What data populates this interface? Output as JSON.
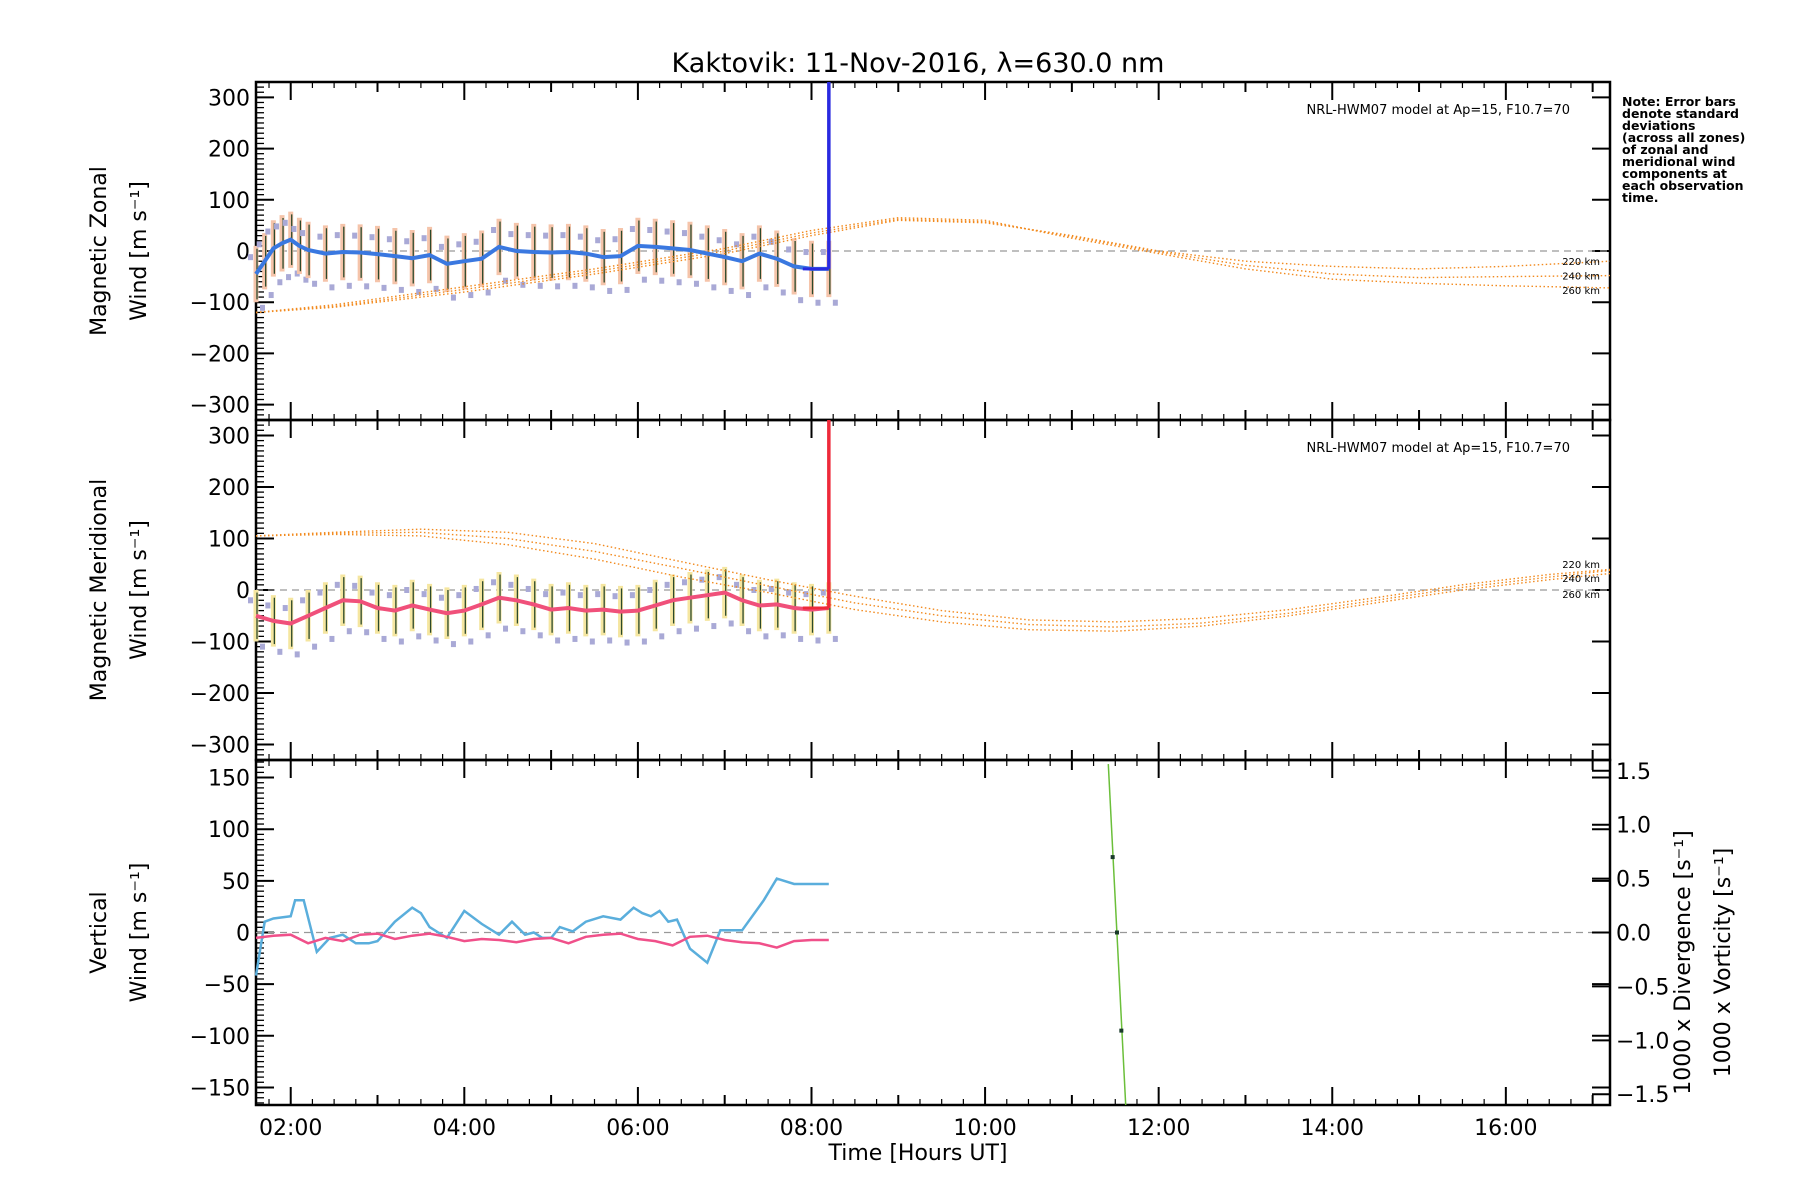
{
  "title": "Kaktovik: 11-Nov-2016, λ=630.0 nm",
  "note": [
    "Note: Error bars",
    "denote standard",
    "deviations",
    "(across all zones)",
    "of zonal and",
    "meridional wind",
    "components at",
    "each observation",
    "time."
  ],
  "model_label": "NRL-HWM07 model at Ap=15, F10.7=70",
  "model_altitudes": [
    "220 km",
    "240 km",
    "260 km"
  ],
  "colors": {
    "zonal": "#3a78e0",
    "zonal_fill": "#f5c4aa",
    "meridional": "#f0507a",
    "meridional_fill": "#f5e6a0",
    "model": "#f28a1e",
    "scatter": "#a9a9d6",
    "vertical": "#6bbf3a",
    "divergence": "#5aaedc",
    "vorticity": "#f0508a",
    "cut_zonal": "#2a2ae0",
    "cut_meridional": "#ee2a3a"
  },
  "chart_data": [
    {
      "type": "line",
      "panel": "zonal",
      "ylabel": [
        "Magnetic Zonal",
        "Wind [m s⁻¹]"
      ],
      "ylim": [
        -330,
        330
      ],
      "yticks": [
        "300",
        "200",
        "100",
        "0",
        "−100",
        "−200",
        "−300"
      ],
      "xlim": [
        1.6,
        17.2
      ],
      "series": [
        {
          "role": "observed",
          "x": [
            1.6,
            1.7,
            1.8,
            1.9,
            2.0,
            2.1,
            2.2,
            2.4,
            2.6,
            2.8,
            3.0,
            3.2,
            3.4,
            3.6,
            3.8,
            4.0,
            4.2,
            4.4,
            4.6,
            4.8,
            5.0,
            5.2,
            5.4,
            5.6,
            5.8,
            6.0,
            6.2,
            6.4,
            6.6,
            6.8,
            7.0,
            7.2,
            7.4,
            7.6,
            7.8,
            8.0,
            8.2
          ],
          "y": [
            -45,
            -20,
            5,
            15,
            22,
            10,
            2,
            -5,
            -2,
            -3,
            -6,
            -10,
            -14,
            -8,
            -25,
            -20,
            -15,
            8,
            0,
            -2,
            -3,
            -2,
            -5,
            -12,
            -10,
            10,
            8,
            5,
            2,
            -5,
            -12,
            -20,
            -5,
            -15,
            -30,
            -35,
            -35
          ],
          "sd": [
            55,
            55,
            55,
            55,
            55,
            55,
            55,
            55,
            55,
            55,
            55,
            55,
            55,
            55,
            55,
            55,
            55,
            55,
            55,
            55,
            55,
            55,
            55,
            55,
            55,
            55,
            55,
            55,
            55,
            55,
            55,
            55,
            55,
            55,
            55,
            55,
            55
          ]
        },
        {
          "role": "model 220 km",
          "x": [
            1.6,
            2.5,
            4.0,
            5.5,
            7.0,
            8.0,
            9.0,
            10.0,
            11.0,
            12.0,
            13.0,
            14.0,
            15.0,
            16.0,
            17.2
          ],
          "y": [
            -120,
            -110,
            -80,
            -45,
            -5,
            30,
            60,
            55,
            30,
            0,
            -20,
            -30,
            -35,
            -30,
            -20
          ]
        },
        {
          "role": "model 240 km",
          "x": [
            1.6,
            2.5,
            4.0,
            5.5,
            7.0,
            8.0,
            9.0,
            10.0,
            11.0,
            12.0,
            13.0,
            14.0,
            15.0,
            16.0,
            17.2
          ],
          "y": [
            -120,
            -108,
            -75,
            -40,
            0,
            35,
            62,
            57,
            28,
            -2,
            -28,
            -45,
            -52,
            -50,
            -48
          ]
        },
        {
          "role": "model 260 km",
          "x": [
            1.6,
            2.5,
            4.0,
            5.5,
            7.0,
            8.0,
            9.0,
            10.0,
            11.0,
            12.0,
            13.0,
            14.0,
            15.0,
            16.0,
            17.2
          ],
          "y": [
            -120,
            -105,
            -70,
            -35,
            5,
            40,
            65,
            60,
            25,
            -5,
            -35,
            -55,
            -63,
            -68,
            -72
          ]
        }
      ],
      "cutoff": {
        "x": 8.2,
        "y_from": -35,
        "y_to": 330
      }
    },
    {
      "type": "line",
      "panel": "meridional",
      "ylabel": [
        "Magnetic Meridional",
        "Wind [m s⁻¹]"
      ],
      "ylim": [
        -330,
        330
      ],
      "yticks": [
        "300",
        "200",
        "100",
        "0",
        "−100",
        "−200",
        "−300"
      ],
      "xlim": [
        1.6,
        17.2
      ],
      "series": [
        {
          "role": "observed",
          "x": [
            1.6,
            1.8,
            2.0,
            2.2,
            2.4,
            2.6,
            2.8,
            3.0,
            3.2,
            3.4,
            3.6,
            3.8,
            4.0,
            4.2,
            4.4,
            4.6,
            4.8,
            5.0,
            5.2,
            5.4,
            5.6,
            5.8,
            6.0,
            6.2,
            6.4,
            6.6,
            6.8,
            7.0,
            7.2,
            7.4,
            7.6,
            7.8,
            8.0,
            8.2
          ],
          "y": [
            -50,
            -60,
            -65,
            -50,
            -35,
            -20,
            -22,
            -35,
            -40,
            -30,
            -38,
            -45,
            -40,
            -28,
            -15,
            -20,
            -28,
            -38,
            -35,
            -40,
            -38,
            -42,
            -40,
            -30,
            -20,
            -15,
            -10,
            -5,
            -20,
            -30,
            -28,
            -35,
            -38,
            -35
          ],
          "sd": [
            50,
            50,
            50,
            50,
            50,
            50,
            50,
            50,
            50,
            50,
            50,
            50,
            50,
            50,
            50,
            50,
            50,
            50,
            50,
            50,
            50,
            50,
            50,
            50,
            50,
            50,
            50,
            50,
            50,
            50,
            50,
            50,
            50,
            50
          ]
        },
        {
          "role": "model 220 km",
          "x": [
            1.6,
            2.5,
            3.5,
            4.5,
            5.5,
            6.5,
            7.5,
            8.5,
            9.5,
            10.5,
            11.5,
            12.5,
            13.5,
            14.5,
            15.5,
            16.5,
            17.2
          ],
          "y": [
            105,
            112,
            118,
            112,
            90,
            55,
            20,
            -12,
            -40,
            -58,
            -62,
            -55,
            -38,
            -15,
            10,
            30,
            40
          ]
        },
        {
          "role": "model 240 km",
          "x": [
            1.6,
            2.5,
            3.5,
            4.5,
            5.5,
            6.5,
            7.5,
            8.5,
            9.5,
            10.5,
            11.5,
            12.5,
            13.5,
            14.5,
            15.5,
            16.5,
            17.2
          ],
          "y": [
            105,
            110,
            112,
            100,
            75,
            42,
            8,
            -25,
            -50,
            -67,
            -72,
            -64,
            -45,
            -20,
            5,
            25,
            38
          ]
        },
        {
          "role": "model 260 km",
          "x": [
            1.6,
            2.5,
            3.5,
            4.5,
            5.5,
            6.5,
            7.5,
            8.5,
            9.5,
            10.5,
            11.5,
            12.5,
            13.5,
            14.5,
            15.5,
            16.5,
            17.2
          ],
          "y": [
            105,
            108,
            105,
            88,
            60,
            25,
            -5,
            -38,
            -62,
            -77,
            -80,
            -70,
            -50,
            -25,
            0,
            20,
            32
          ]
        }
      ],
      "cutoff": {
        "x": 8.2,
        "y_from": -35,
        "y_to": 330
      }
    },
    {
      "type": "line",
      "panel": "vertical",
      "ylabel": [
        "Vertical",
        "Wind [m s⁻¹]"
      ],
      "ylim": [
        -167,
        167
      ],
      "yticks": [
        "150",
        "100",
        "50",
        "0",
        "−50",
        "−100",
        "−150"
      ],
      "y2label": [
        "1000 x Divergence [s⁻¹]",
        "1000 x Vorticity [s⁻¹]"
      ],
      "y2lim": [
        -1.6,
        1.6
      ],
      "y2ticks": [
        "1.5",
        "1.0",
        "0.5",
        "0.0",
        "−0.5",
        "−1.0",
        "−1.5"
      ],
      "xlim": [
        1.6,
        17.2
      ],
      "xticks": [
        "02:00",
        "04:00",
        "06:00",
        "08:00",
        "10:00",
        "12:00",
        "14:00",
        "16:00"
      ],
      "xlabel": "Time [Hours UT]",
      "series": [
        {
          "role": "divergence (right axis)",
          "x": [
            1.6,
            1.7,
            1.8,
            2.0,
            2.05,
            2.15,
            2.3,
            2.45,
            2.6,
            2.75,
            2.9,
            3.0,
            3.2,
            3.4,
            3.5,
            3.6,
            3.7,
            3.8,
            4.0,
            4.2,
            4.4,
            4.55,
            4.7,
            4.8,
            4.9,
            5.0,
            5.1,
            5.25,
            5.4,
            5.6,
            5.8,
            5.95,
            6.05,
            6.15,
            6.25,
            6.35,
            6.45,
            6.6,
            6.8,
            6.95,
            7.05,
            7.2,
            7.45,
            7.6,
            7.8,
            7.95,
            8.05,
            8.2
          ],
          "y": [
            -0.4,
            0.1,
            0.13,
            0.15,
            0.3,
            0.3,
            -0.18,
            -0.05,
            -0.02,
            -0.1,
            -0.1,
            -0.08,
            0.1,
            0.23,
            0.18,
            0.05,
            0.0,
            -0.05,
            0.2,
            0.08,
            -0.02,
            0.1,
            -0.02,
            0.0,
            -0.05,
            -0.05,
            0.05,
            0.01,
            0.1,
            0.15,
            0.12,
            0.23,
            0.18,
            0.15,
            0.2,
            0.1,
            0.12,
            -0.15,
            -0.28,
            0.02,
            0.02,
            0.02,
            0.3,
            0.5,
            0.45,
            0.45,
            0.45,
            0.45
          ]
        },
        {
          "role": "vorticity (right axis)",
          "x": [
            1.6,
            1.8,
            2.0,
            2.2,
            2.4,
            2.6,
            2.8,
            3.0,
            3.2,
            3.4,
            3.6,
            3.8,
            4.0,
            4.2,
            4.4,
            4.6,
            4.8,
            5.0,
            5.2,
            5.4,
            5.6,
            5.8,
            6.0,
            6.2,
            6.4,
            6.6,
            6.8,
            7.0,
            7.2,
            7.4,
            7.6,
            7.8,
            8.0,
            8.2
          ],
          "y": [
            -0.05,
            -0.03,
            -0.02,
            -0.1,
            -0.05,
            -0.08,
            -0.02,
            -0.01,
            -0.06,
            -0.03,
            -0.01,
            -0.04,
            -0.08,
            -0.06,
            -0.07,
            -0.09,
            -0.06,
            -0.05,
            -0.1,
            -0.04,
            -0.02,
            -0.01,
            -0.06,
            -0.08,
            -0.12,
            -0.04,
            -0.03,
            -0.07,
            -0.09,
            -0.1,
            -0.14,
            -0.08,
            -0.07,
            -0.07
          ]
        },
        {
          "role": "vertical wind",
          "x": [
            11.42,
            11.62
          ],
          "y": [
            163,
            -167
          ],
          "points_x": [
            11.47,
            11.52,
            11.57
          ],
          "points_y": [
            73,
            0,
            -95
          ]
        }
      ]
    }
  ]
}
